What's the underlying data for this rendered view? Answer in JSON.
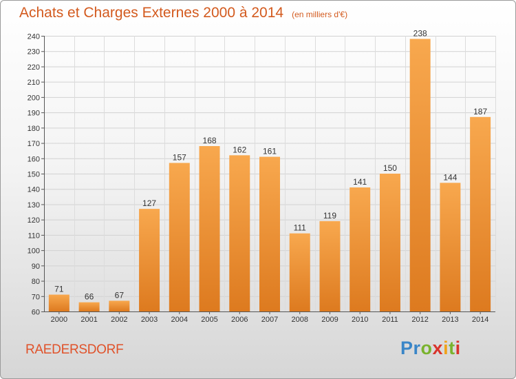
{
  "header": {
    "title": "Achats et Charges Externes 2000 à 2014",
    "subtitle": "(en milliers d'€)"
  },
  "footer": {
    "commune": "RAEDERSDORF",
    "brand": "Proxiti"
  },
  "colors": {
    "bar_top": "#f8a84e",
    "bar_bottom": "#dd7a1f",
    "title": "#d35a1e",
    "commune": "#e0522a"
  },
  "chart_data": {
    "type": "bar",
    "title": "Achats et Charges Externes 2000 à 2014",
    "subtitle": "(en milliers d'€)",
    "categories": [
      "2000",
      "2001",
      "2002",
      "2003",
      "2004",
      "2005",
      "2006",
      "2007",
      "2008",
      "2009",
      "2010",
      "2011",
      "2012",
      "2013",
      "2014"
    ],
    "values": [
      71,
      66,
      67,
      127,
      157,
      168,
      162,
      161,
      111,
      119,
      141,
      150,
      238,
      144,
      187
    ],
    "ylim": [
      60,
      240
    ],
    "yticks": [
      60,
      70,
      80,
      90,
      100,
      110,
      120,
      130,
      140,
      150,
      160,
      170,
      180,
      190,
      200,
      210,
      220,
      230,
      240
    ],
    "grid": true,
    "legend": "none"
  }
}
